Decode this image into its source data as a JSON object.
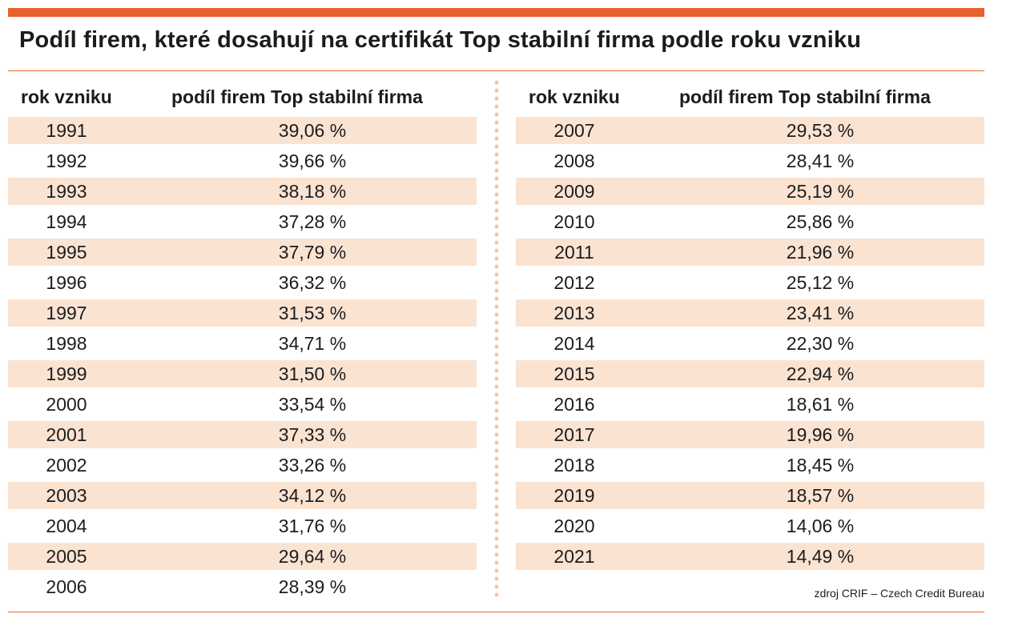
{
  "title": "Podíl firem, které dosahují na certifikát Top stabilní firma podle roku vzniku",
  "columns": {
    "year": "rok vzniku",
    "share": "podíl firem Top stabilní firma"
  },
  "source": "zdroj CRIF – Czech Credit Bureau",
  "colors": {
    "accent": "#e8612c",
    "row_shade": "#fbe3d2",
    "divider_dots": "#f6c6a7"
  },
  "chart_data": {
    "type": "table",
    "title": "Podíl firem, které dosahují na certifikát Top stabilní firma podle roku vzniku",
    "columns": [
      "rok vzniku",
      "podíl firem Top stabilní firma"
    ],
    "rows": [
      {
        "year": "1991",
        "share": "39,06 %"
      },
      {
        "year": "1992",
        "share": "39,66 %"
      },
      {
        "year": "1993",
        "share": "38,18 %"
      },
      {
        "year": "1994",
        "share": "37,28 %"
      },
      {
        "year": "1995",
        "share": "37,79 %"
      },
      {
        "year": "1996",
        "share": "36,32 %"
      },
      {
        "year": "1997",
        "share": "31,53 %"
      },
      {
        "year": "1998",
        "share": "34,71 %"
      },
      {
        "year": "1999",
        "share": "31,50 %"
      },
      {
        "year": "2000",
        "share": "33,54 %"
      },
      {
        "year": "2001",
        "share": "37,33 %"
      },
      {
        "year": "2002",
        "share": "33,26 %"
      },
      {
        "year": "2003",
        "share": "34,12 %"
      },
      {
        "year": "2004",
        "share": "31,76 %"
      },
      {
        "year": "2005",
        "share": "29,64 %"
      },
      {
        "year": "2006",
        "share": "28,39 %"
      },
      {
        "year": "2007",
        "share": "29,53 %"
      },
      {
        "year": "2008",
        "share": "28,41 %"
      },
      {
        "year": "2009",
        "share": "25,19 %"
      },
      {
        "year": "2010",
        "share": "25,86 %"
      },
      {
        "year": "2011",
        "share": "21,96 %"
      },
      {
        "year": "2012",
        "share": "25,12 %"
      },
      {
        "year": "2013",
        "share": "23,41 %"
      },
      {
        "year": "2014",
        "share": "22,30 %"
      },
      {
        "year": "2015",
        "share": "22,94 %"
      },
      {
        "year": "2016",
        "share": "18,61 %"
      },
      {
        "year": "2017",
        "share": "19,96 %"
      },
      {
        "year": "2018",
        "share": "18,45 %"
      },
      {
        "year": "2019",
        "share": "18,57 %"
      },
      {
        "year": "2020",
        "share": "14,06 %"
      },
      {
        "year": "2021",
        "share": "14,49 %"
      }
    ],
    "source": "zdroj CRIF – Czech Credit Bureau"
  }
}
